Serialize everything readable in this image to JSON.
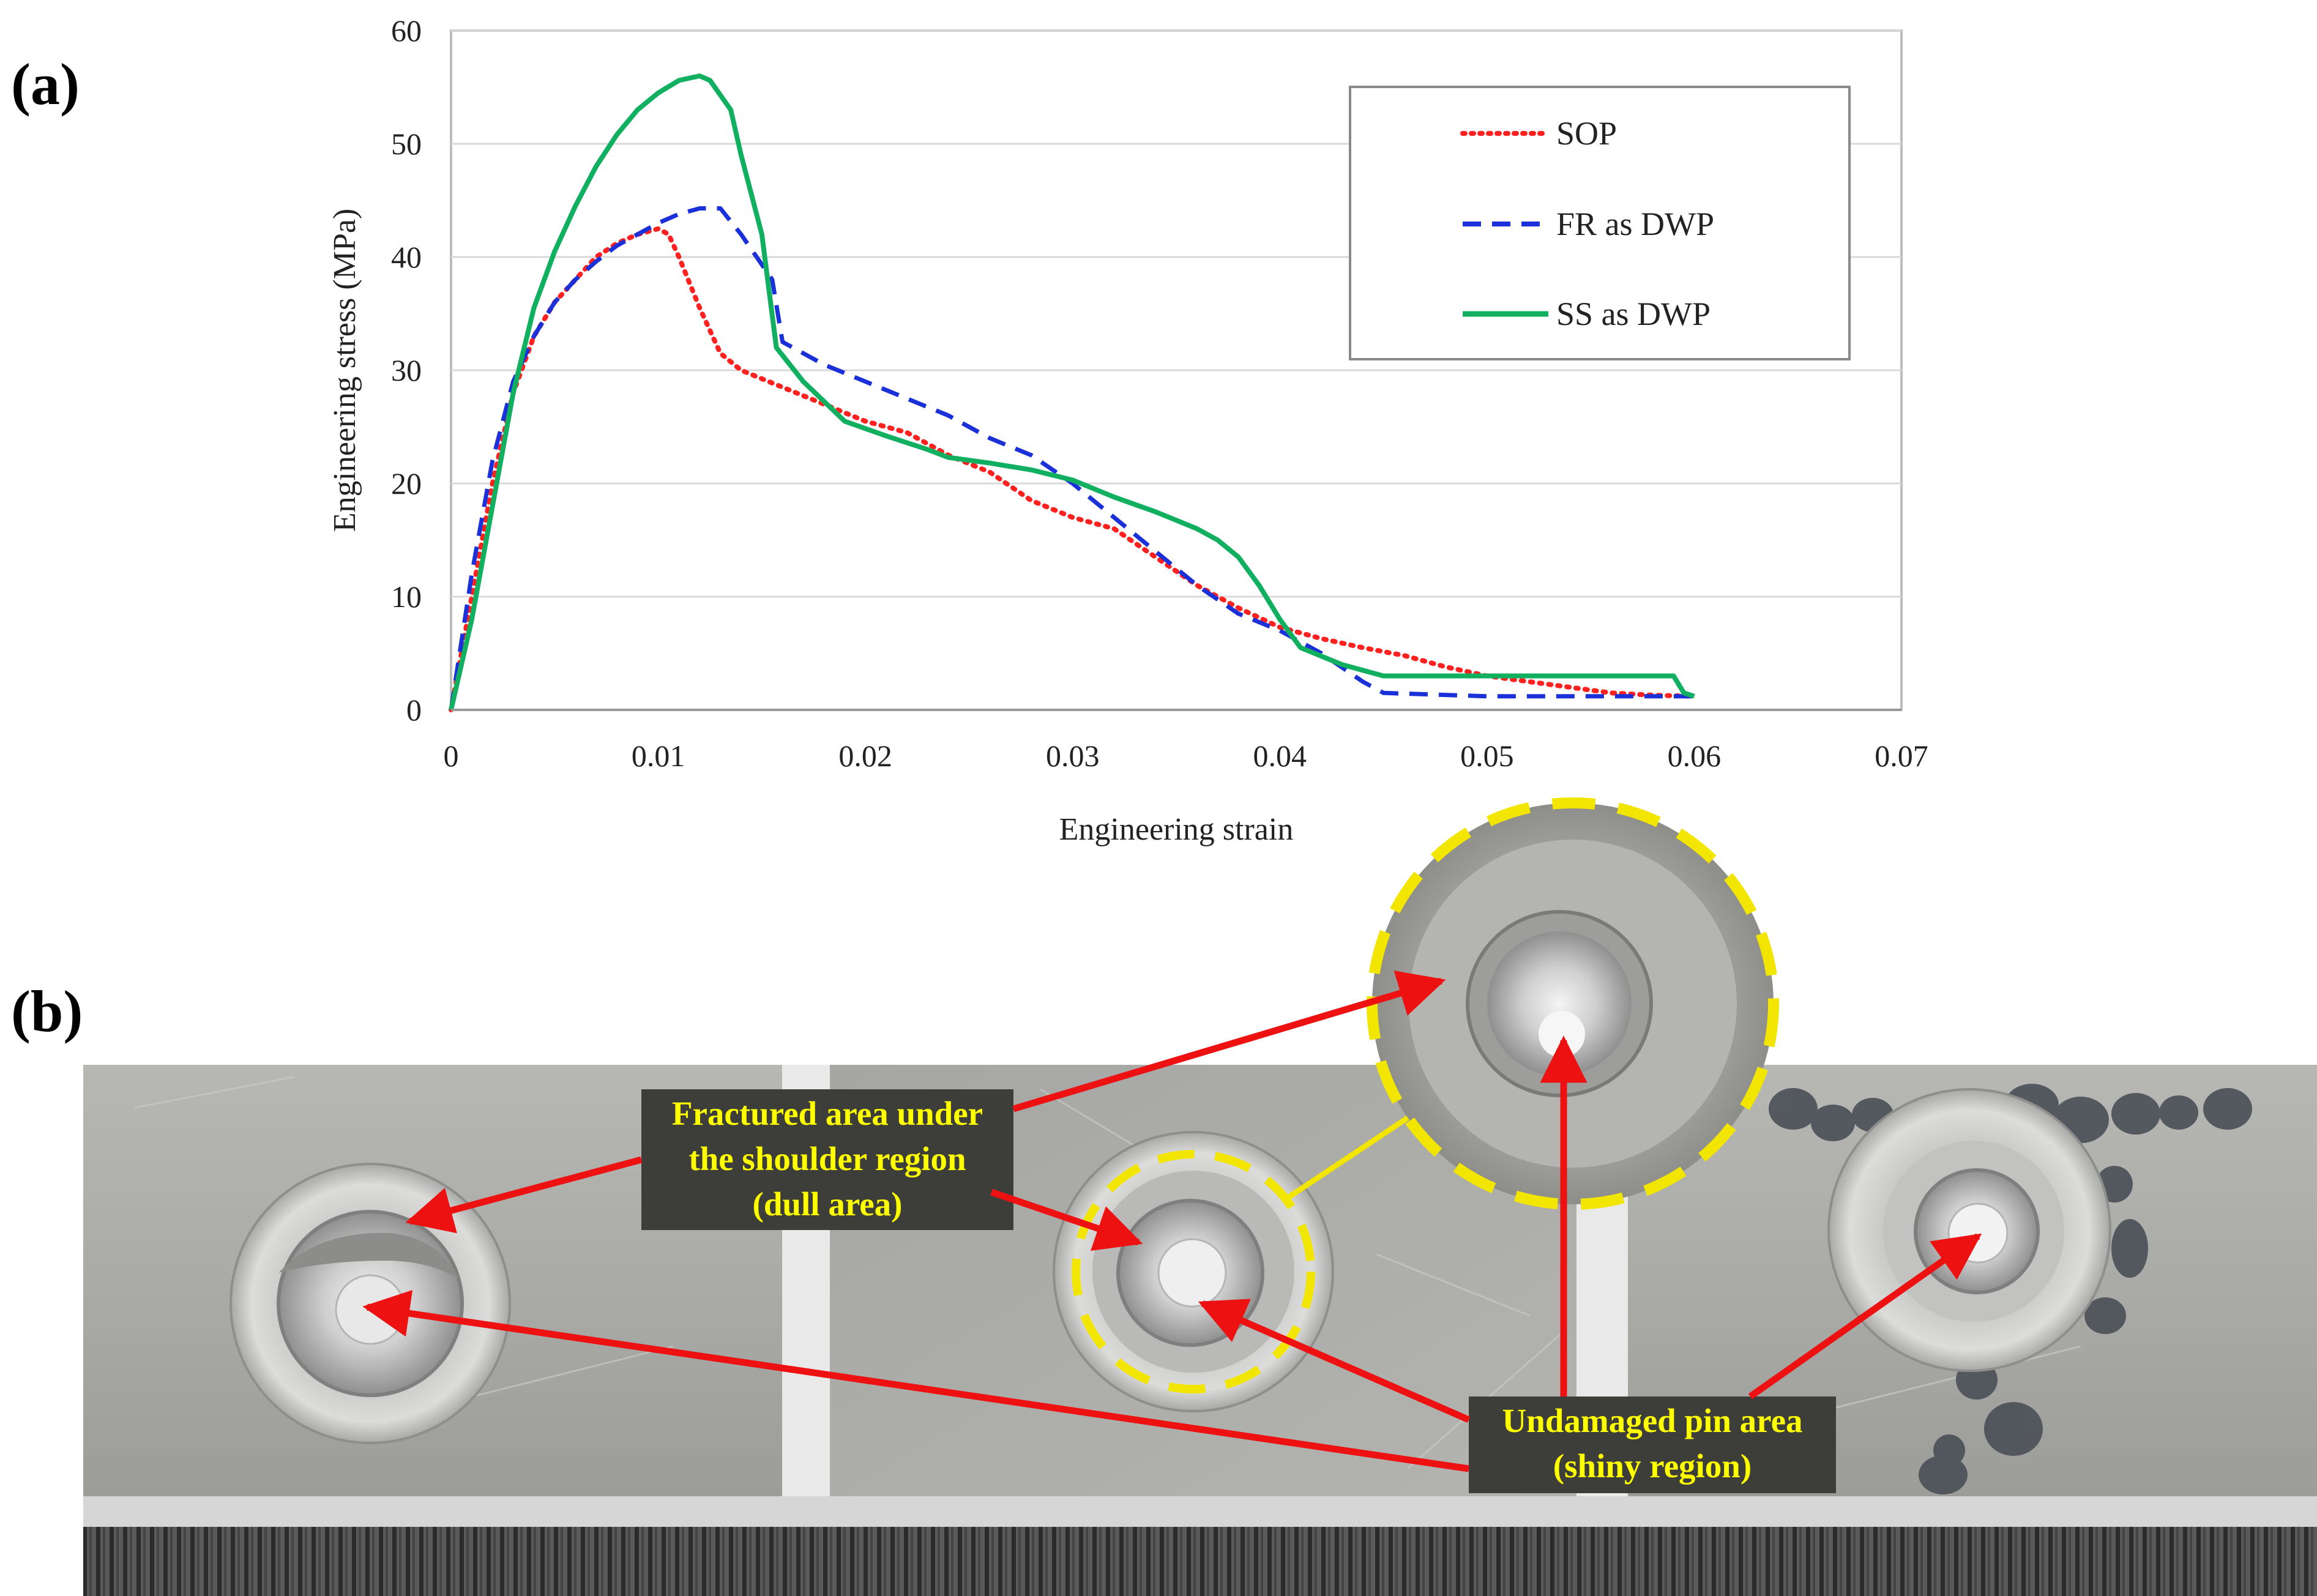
{
  "panels": {
    "a": "(a)",
    "b": "(b)"
  },
  "chart_data": {
    "type": "line",
    "title": "",
    "xlabel": "Engineering strain",
    "ylabel": "Engineering stress (MPa)",
    "xlim": [
      0,
      0.07
    ],
    "ylim": [
      0,
      60
    ],
    "xticks": [
      0,
      0.01,
      0.02,
      0.03,
      0.04,
      0.05,
      0.06,
      0.07
    ],
    "xtick_labels": [
      "0",
      "0.01",
      "0.02",
      "0.03",
      "0.04",
      "0.05",
      "0.06",
      "0.07"
    ],
    "yticks": [
      0,
      10,
      20,
      30,
      40,
      50,
      60
    ],
    "ytick_labels": [
      "0",
      "10",
      "20",
      "30",
      "40",
      "50",
      "60"
    ],
    "grid": "horizontal",
    "legend_position": "top-right",
    "series": [
      {
        "name": "SOP",
        "color": "#ff2020",
        "style": "dotted",
        "points": [
          [
            0,
            0
          ],
          [
            0.001,
            10
          ],
          [
            0.002,
            20
          ],
          [
            0.003,
            28
          ],
          [
            0.004,
            33
          ],
          [
            0.005,
            36
          ],
          [
            0.006,
            38
          ],
          [
            0.007,
            40
          ],
          [
            0.008,
            41.2
          ],
          [
            0.009,
            42
          ],
          [
            0.01,
            42.5
          ],
          [
            0.0105,
            42
          ],
          [
            0.011,
            40
          ],
          [
            0.012,
            35.5
          ],
          [
            0.013,
            31.5
          ],
          [
            0.014,
            30
          ],
          [
            0.016,
            28.5
          ],
          [
            0.018,
            27
          ],
          [
            0.02,
            25.5
          ],
          [
            0.022,
            24.5
          ],
          [
            0.024,
            22.5
          ],
          [
            0.026,
            21
          ],
          [
            0.028,
            18.5
          ],
          [
            0.03,
            17
          ],
          [
            0.032,
            16
          ],
          [
            0.034,
            13.5
          ],
          [
            0.036,
            11
          ],
          [
            0.038,
            9
          ],
          [
            0.04,
            7.3
          ],
          [
            0.042,
            6.3
          ],
          [
            0.044,
            5.5
          ],
          [
            0.046,
            4.8
          ],
          [
            0.048,
            3.8
          ],
          [
            0.05,
            3
          ],
          [
            0.052,
            2.5
          ],
          [
            0.054,
            2
          ],
          [
            0.056,
            1.5
          ],
          [
            0.058,
            1.3
          ],
          [
            0.06,
            1.2
          ]
        ]
      },
      {
        "name": "FR as DWP",
        "color": "#1a30d8",
        "style": "dashed",
        "points": [
          [
            0,
            0
          ],
          [
            0.001,
            12
          ],
          [
            0.002,
            22
          ],
          [
            0.003,
            29
          ],
          [
            0.004,
            33
          ],
          [
            0.005,
            36
          ],
          [
            0.006,
            38
          ],
          [
            0.007,
            39.6
          ],
          [
            0.008,
            41
          ],
          [
            0.009,
            42
          ],
          [
            0.01,
            43
          ],
          [
            0.011,
            43.8
          ],
          [
            0.012,
            44.3
          ],
          [
            0.013,
            44.3
          ],
          [
            0.014,
            42
          ],
          [
            0.0155,
            38
          ],
          [
            0.016,
            32.5
          ],
          [
            0.018,
            30.5
          ],
          [
            0.02,
            29
          ],
          [
            0.022,
            27.5
          ],
          [
            0.024,
            26
          ],
          [
            0.026,
            24
          ],
          [
            0.028,
            22.5
          ],
          [
            0.03,
            20
          ],
          [
            0.032,
            17
          ],
          [
            0.034,
            14
          ],
          [
            0.036,
            11
          ],
          [
            0.038,
            8.5
          ],
          [
            0.04,
            7
          ],
          [
            0.042,
            5
          ],
          [
            0.044,
            2.5
          ],
          [
            0.045,
            1.5
          ],
          [
            0.05,
            1.2
          ],
          [
            0.055,
            1.2
          ],
          [
            0.06,
            1.2
          ]
        ]
      },
      {
        "name": "SS as DWP",
        "color": "#10b060",
        "style": "solid",
        "points": [
          [
            0,
            0
          ],
          [
            0.001,
            8
          ],
          [
            0.002,
            18
          ],
          [
            0.003,
            28
          ],
          [
            0.004,
            35.5
          ],
          [
            0.005,
            40.5
          ],
          [
            0.006,
            44.5
          ],
          [
            0.007,
            48
          ],
          [
            0.008,
            50.8
          ],
          [
            0.009,
            53
          ],
          [
            0.01,
            54.5
          ],
          [
            0.011,
            55.6
          ],
          [
            0.012,
            56
          ],
          [
            0.0125,
            55.6
          ],
          [
            0.0135,
            53
          ],
          [
            0.014,
            49
          ],
          [
            0.015,
            42
          ],
          [
            0.0157,
            32
          ],
          [
            0.017,
            29
          ],
          [
            0.019,
            25.5
          ],
          [
            0.021,
            24.2
          ],
          [
            0.023,
            23
          ],
          [
            0.024,
            22.3
          ],
          [
            0.026,
            21.8
          ],
          [
            0.028,
            21.2
          ],
          [
            0.03,
            20.3
          ],
          [
            0.032,
            18.8
          ],
          [
            0.034,
            17.5
          ],
          [
            0.036,
            16
          ],
          [
            0.037,
            15
          ],
          [
            0.038,
            13.5
          ],
          [
            0.039,
            11
          ],
          [
            0.04,
            8
          ],
          [
            0.041,
            5.5
          ],
          [
            0.043,
            4
          ],
          [
            0.045,
            3
          ],
          [
            0.05,
            3
          ],
          [
            0.055,
            3
          ],
          [
            0.059,
            3
          ],
          [
            0.0595,
            1.5
          ],
          [
            0.06,
            1.2
          ]
        ]
      }
    ]
  },
  "photo": {
    "callout_fractured": [
      "Fractured area under",
      "the shoulder region",
      "(dull area)"
    ],
    "callout_undamaged": [
      "Undamaged pin area",
      "(shiny region)"
    ],
    "highlight_color": "#f2e600",
    "arrow_color": "#ee1111"
  }
}
